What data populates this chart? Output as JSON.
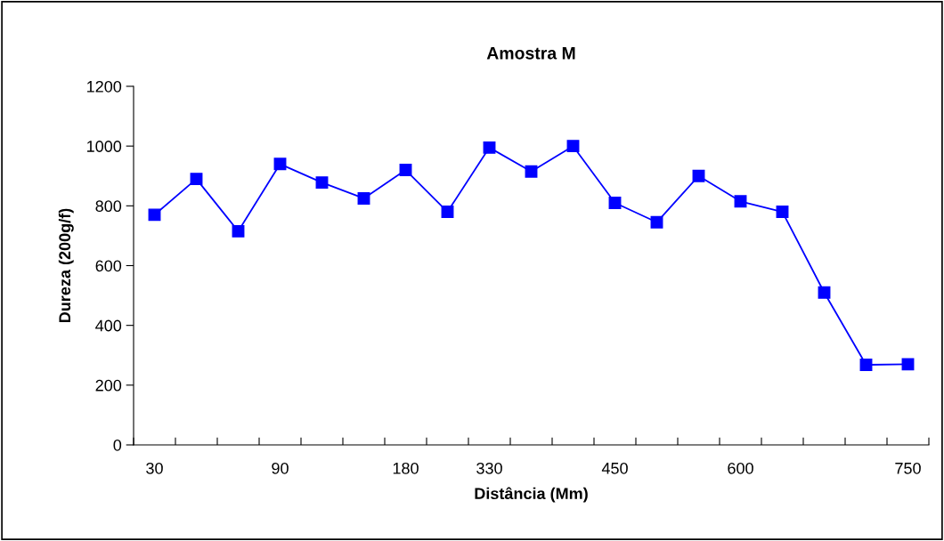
{
  "chart_data": {
    "type": "line",
    "title": "Amostra M",
    "xlabel": "Distância (Mm)",
    "ylabel": "Dureza (200g/f)",
    "categories": [
      "30",
      null,
      null,
      "90",
      null,
      null,
      "180",
      null,
      "330",
      null,
      null,
      "450",
      null,
      null,
      "600",
      null,
      null,
      null,
      "750"
    ],
    "series": [
      {
        "color": "#0000ff",
        "values": [
          770,
          890,
          715,
          940,
          878,
          825,
          920,
          780,
          995,
          915,
          1000,
          810,
          745,
          900,
          815,
          780,
          510,
          268,
          270
        ]
      }
    ],
    "ylim": [
      0,
      1200
    ],
    "yticks": [
      0,
      200,
      400,
      600,
      800,
      1000,
      1200
    ],
    "grid": false,
    "legend": false,
    "marker": "square",
    "line_style": "solid"
  }
}
